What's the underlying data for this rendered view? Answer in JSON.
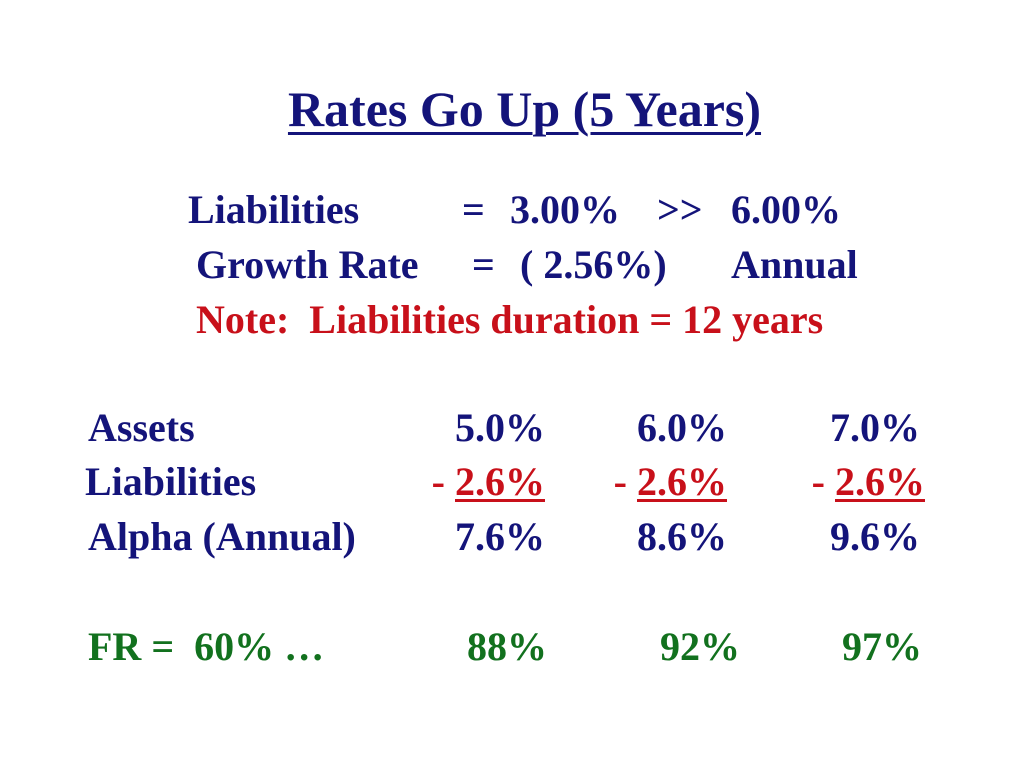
{
  "title": "Rates Go Up (5 Years)",
  "summary": {
    "liabilities_label": "Liabilities",
    "liabilities_eq": "=",
    "rate_from": "3.00%",
    "arrow": ">>",
    "rate_to": "6.00%",
    "growth_label": "Growth Rate",
    "growth_eq": "=",
    "growth_value": "( 2.56%)",
    "growth_period": "Annual",
    "note": "Note:  Liabilities duration = 12 years"
  },
  "table": {
    "rows": [
      {
        "label": "Assets",
        "cells": [
          {
            "prefix": "",
            "value": "5.0%"
          },
          {
            "prefix": "",
            "value": "6.0%"
          },
          {
            "prefix": "",
            "value": "7.0%"
          }
        ]
      },
      {
        "label": "Liabilities",
        "cells": [
          {
            "prefix": "- ",
            "value": "2.6%"
          },
          {
            "prefix": "- ",
            "value": "2.6%"
          },
          {
            "prefix": "- ",
            "value": "2.6%"
          }
        ]
      },
      {
        "label": "Alpha (Annual)",
        "cells": [
          {
            "prefix": "",
            "value": "7.6%"
          },
          {
            "prefix": "",
            "value": "8.6%"
          },
          {
            "prefix": "",
            "value": "9.6%"
          }
        ]
      }
    ],
    "fr": {
      "label": "FR =  60% …",
      "values": [
        "88%",
        "92%",
        "97%"
      ]
    }
  },
  "colors": {
    "navy": "#14147a",
    "red": "#c8101a",
    "green": "#12711e"
  }
}
